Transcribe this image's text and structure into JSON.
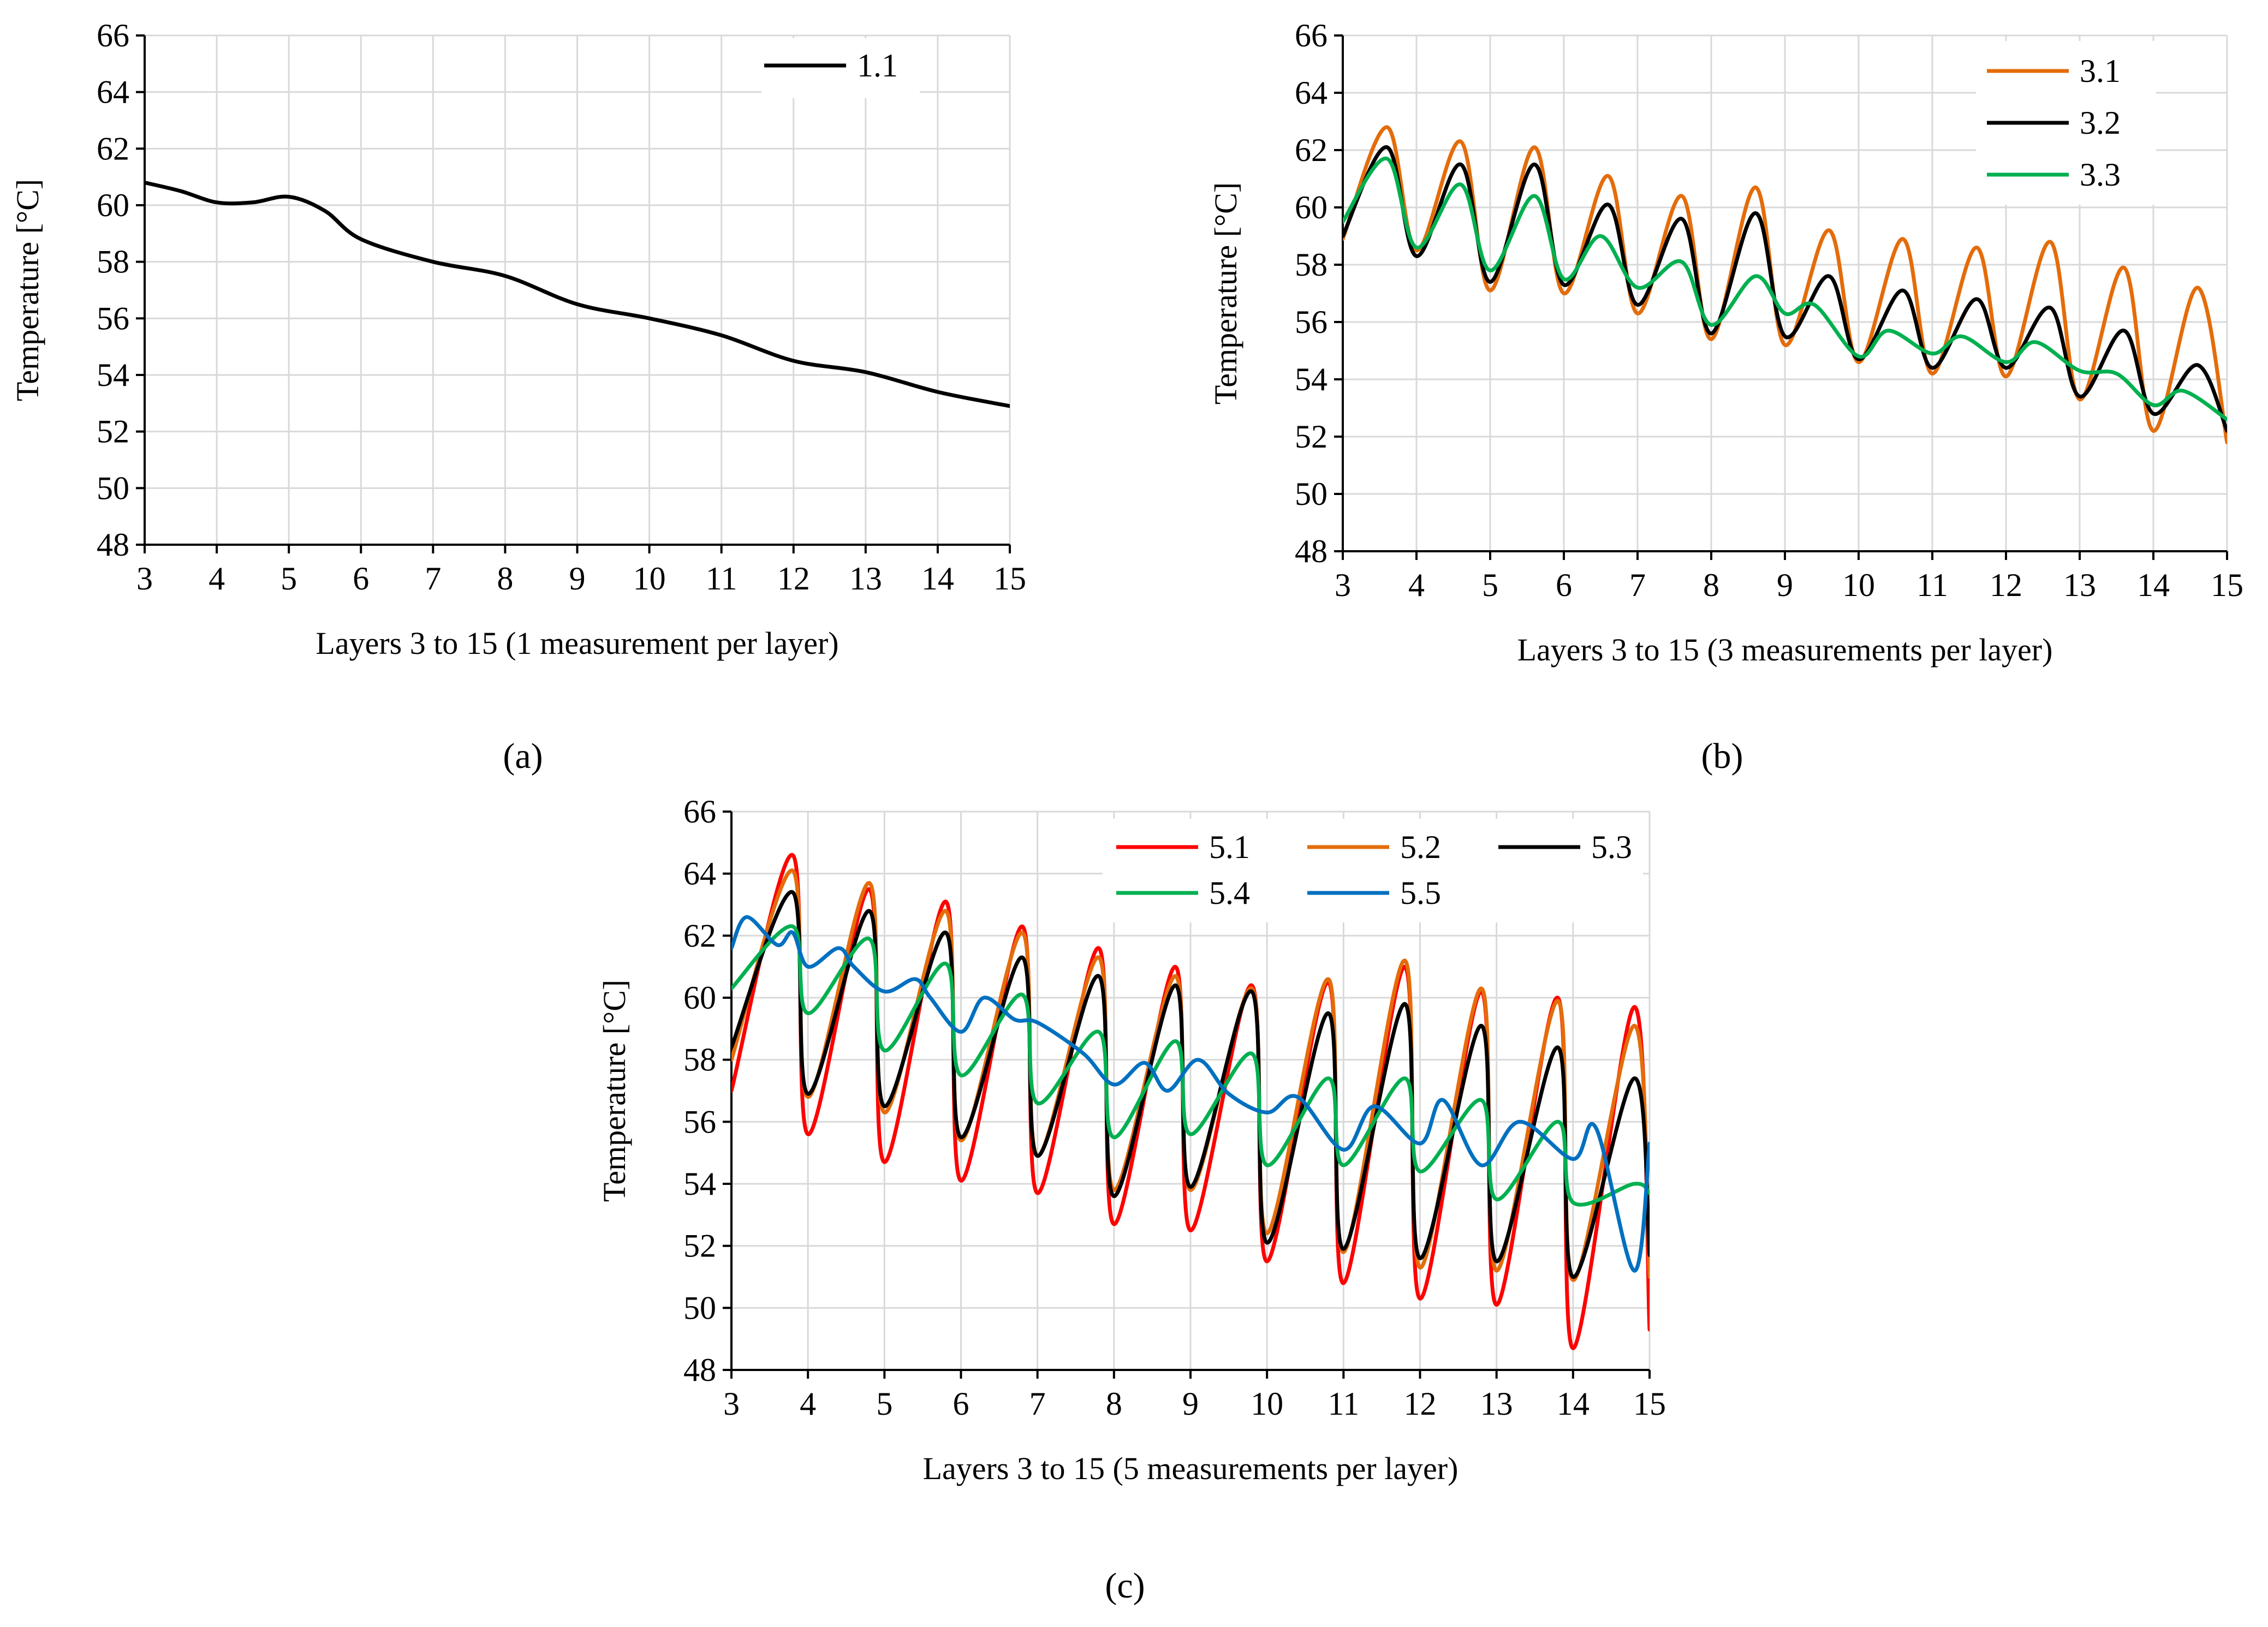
{
  "figure": {
    "panel_labels": [
      "(a)",
      "(b)",
      "(c)"
    ]
  },
  "chart_data": [
    {
      "type": "line",
      "panel": "a",
      "title": "",
      "xlabel": "Layers 3 to 15 (1 measurement per layer)",
      "ylabel": "Temperature [°C]",
      "xlim": [
        3,
        15
      ],
      "ylim": [
        48,
        66
      ],
      "xticks": [
        3,
        4,
        5,
        6,
        7,
        8,
        9,
        10,
        11,
        12,
        13,
        14,
        15
      ],
      "yticks": [
        48,
        50,
        52,
        54,
        56,
        58,
        60,
        62,
        64,
        66
      ],
      "grid": true,
      "legend_position": "top-right",
      "legend_columns": 1,
      "series": [
        {
          "name": "1.1",
          "color": "#000000",
          "x": [
            3,
            3.5,
            4,
            4.5,
            5,
            5.5,
            6,
            7,
            8,
            9,
            10,
            11,
            12,
            13,
            14,
            15
          ],
          "y": [
            60.8,
            60.5,
            60.1,
            60.1,
            60.3,
            59.8,
            58.8,
            58.0,
            57.5,
            56.5,
            56.0,
            55.4,
            54.5,
            54.1,
            53.4,
            52.9
          ]
        }
      ]
    },
    {
      "type": "line",
      "panel": "b",
      "title": "",
      "xlabel": "Layers 3 to 15 (3 measurements per layer)",
      "ylabel": "Temperature [°C]",
      "xlim": [
        3,
        15
      ],
      "ylim": [
        48,
        66
      ],
      "xticks": [
        3,
        4,
        5,
        6,
        7,
        8,
        9,
        10,
        11,
        12,
        13,
        14,
        15
      ],
      "yticks": [
        48,
        50,
        52,
        54,
        56,
        58,
        60,
        62,
        64,
        66
      ],
      "grid": true,
      "legend_position": "top-right",
      "legend_columns": 1,
      "series": [
        {
          "name": "3.1",
          "color": "#E46C0A",
          "x": [
            3,
            3.6,
            4,
            4.6,
            5,
            5.6,
            6,
            6.6,
            7,
            7.6,
            8,
            8.6,
            9,
            9.6,
            10,
            10.6,
            11,
            11.6,
            12,
            12.6,
            13,
            13.6,
            14,
            14.6,
            15
          ],
          "y": [
            58.9,
            62.8,
            58.5,
            62.3,
            57.1,
            62.1,
            57.0,
            61.1,
            56.3,
            60.4,
            55.4,
            60.7,
            55.2,
            59.2,
            54.6,
            58.9,
            54.2,
            58.6,
            54.1,
            58.8,
            53.3,
            57.9,
            52.2,
            57.2,
            51.8
          ]
        },
        {
          "name": "3.2",
          "color": "#000000",
          "x": [
            3,
            3.6,
            4,
            4.6,
            5,
            5.6,
            6,
            6.6,
            7,
            7.6,
            8,
            8.6,
            9,
            9.6,
            10,
            10.6,
            11,
            11.6,
            12,
            12.6,
            13,
            13.6,
            14,
            14.6,
            15
          ],
          "y": [
            59.0,
            62.1,
            58.3,
            61.5,
            57.4,
            61.5,
            57.3,
            60.1,
            56.6,
            59.6,
            55.6,
            59.8,
            55.5,
            57.6,
            54.7,
            57.1,
            54.4,
            56.8,
            54.4,
            56.5,
            53.4,
            55.7,
            52.8,
            54.5,
            52.2
          ]
        },
        {
          "name": "3.3",
          "color": "#00B050",
          "x": [
            3,
            3.6,
            4,
            4.6,
            5,
            5.6,
            6,
            6.5,
            7,
            7.6,
            8,
            8.6,
            9,
            9.4,
            10,
            10.4,
            11,
            11.4,
            12,
            12.4,
            13,
            13.5,
            14,
            14.4,
            15
          ],
          "y": [
            59.5,
            61.7,
            58.6,
            60.8,
            57.8,
            60.4,
            57.5,
            59.0,
            57.2,
            58.1,
            55.9,
            57.6,
            56.3,
            56.6,
            54.8,
            55.7,
            54.9,
            55.5,
            54.6,
            55.3,
            54.3,
            54.2,
            53.1,
            53.6,
            52.6
          ]
        }
      ]
    },
    {
      "type": "line",
      "panel": "c",
      "title": "",
      "xlabel": "Layers 3 to 15 (5 measurements per layer)",
      "ylabel": "Temperature [°C]",
      "xlim": [
        3,
        15
      ],
      "ylim": [
        48,
        66
      ],
      "xticks": [
        3,
        4,
        5,
        6,
        7,
        8,
        9,
        10,
        11,
        12,
        13,
        14,
        15
      ],
      "yticks": [
        48,
        50,
        52,
        54,
        56,
        58,
        60,
        62,
        64,
        66
      ],
      "grid": true,
      "legend_position": "top-right",
      "legend_columns": 3,
      "series": [
        {
          "name": "5.1",
          "color": "#FF0000",
          "x": [
            3,
            3.8,
            4,
            4.8,
            5,
            5.8,
            6,
            6.8,
            7,
            7.8,
            8,
            8.8,
            9,
            9.8,
            10,
            10.8,
            11,
            11.8,
            12,
            12.8,
            13,
            13.8,
            14,
            14.8,
            15
          ],
          "y": [
            57.0,
            64.6,
            55.6,
            63.5,
            54.7,
            63.1,
            54.1,
            62.3,
            53.7,
            61.6,
            52.7,
            61.0,
            52.5,
            60.4,
            51.5,
            60.5,
            50.8,
            61.0,
            50.3,
            60.2,
            50.1,
            60.0,
            48.7,
            59.7,
            49.3
          ]
        },
        {
          "name": "5.2",
          "color": "#E46C0A",
          "x": [
            3,
            3.8,
            4,
            4.8,
            5,
            5.8,
            6,
            6.8,
            7,
            7.8,
            8,
            8.8,
            9,
            9.8,
            10,
            10.8,
            11,
            11.8,
            12,
            12.8,
            13,
            13.8,
            14,
            14.8,
            15
          ],
          "y": [
            58.0,
            64.1,
            56.8,
            63.7,
            56.3,
            62.8,
            55.4,
            62.1,
            54.9,
            61.3,
            53.8,
            60.7,
            53.8,
            60.3,
            52.4,
            60.6,
            51.8,
            61.2,
            51.3,
            60.3,
            51.2,
            59.9,
            50.9,
            59.1,
            51.0
          ]
        },
        {
          "name": "5.3",
          "color": "#000000",
          "x": [
            3,
            3.8,
            4,
            4.8,
            5,
            5.8,
            6,
            6.8,
            7,
            7.8,
            8,
            8.8,
            9,
            9.8,
            10,
            10.8,
            11,
            11.8,
            12,
            12.8,
            13,
            13.8,
            14,
            14.8,
            15
          ],
          "y": [
            58.4,
            63.4,
            56.9,
            62.8,
            56.5,
            62.1,
            55.5,
            61.3,
            54.9,
            60.7,
            53.6,
            60.4,
            53.9,
            60.2,
            52.1,
            59.5,
            51.9,
            59.8,
            51.6,
            59.1,
            51.5,
            58.4,
            51.0,
            57.4,
            51.7
          ]
        },
        {
          "name": "5.4",
          "color": "#00B050",
          "x": [
            3,
            3.8,
            4,
            4.8,
            5,
            5.8,
            6,
            6.8,
            7,
            7.8,
            8,
            8.8,
            9,
            9.8,
            10,
            10.8,
            11,
            11.8,
            12,
            12.8,
            13,
            13.8,
            14,
            14.8,
            15
          ],
          "y": [
            60.3,
            62.3,
            59.5,
            61.9,
            58.3,
            61.1,
            57.5,
            60.1,
            56.6,
            58.9,
            55.5,
            58.6,
            55.6,
            58.2,
            54.6,
            57.4,
            54.6,
            57.4,
            54.4,
            56.7,
            53.5,
            56.0,
            53.4,
            54.0,
            53.7
          ]
        },
        {
          "name": "5.5",
          "color": "#0070C0",
          "x": [
            3,
            3.2,
            3.6,
            3.8,
            4,
            4.4,
            4.6,
            5,
            5.4,
            5.6,
            6,
            6.3,
            6.7,
            7,
            7.6,
            8,
            8.4,
            8.7,
            9.1,
            9.5,
            10,
            10.4,
            11,
            11.4,
            12,
            12.3,
            12.8,
            13.3,
            14,
            14.3,
            14.8,
            15
          ],
          "y": [
            61.6,
            62.6,
            61.7,
            62.1,
            61.0,
            61.6,
            61.0,
            60.2,
            60.6,
            60.0,
            58.9,
            60.0,
            59.3,
            59.2,
            58.2,
            57.2,
            57.9,
            57.0,
            58.0,
            56.9,
            56.3,
            56.8,
            55.1,
            56.5,
            55.3,
            56.7,
            54.6,
            56.0,
            54.8,
            55.8,
            51.2,
            55.3
          ]
        }
      ]
    }
  ]
}
